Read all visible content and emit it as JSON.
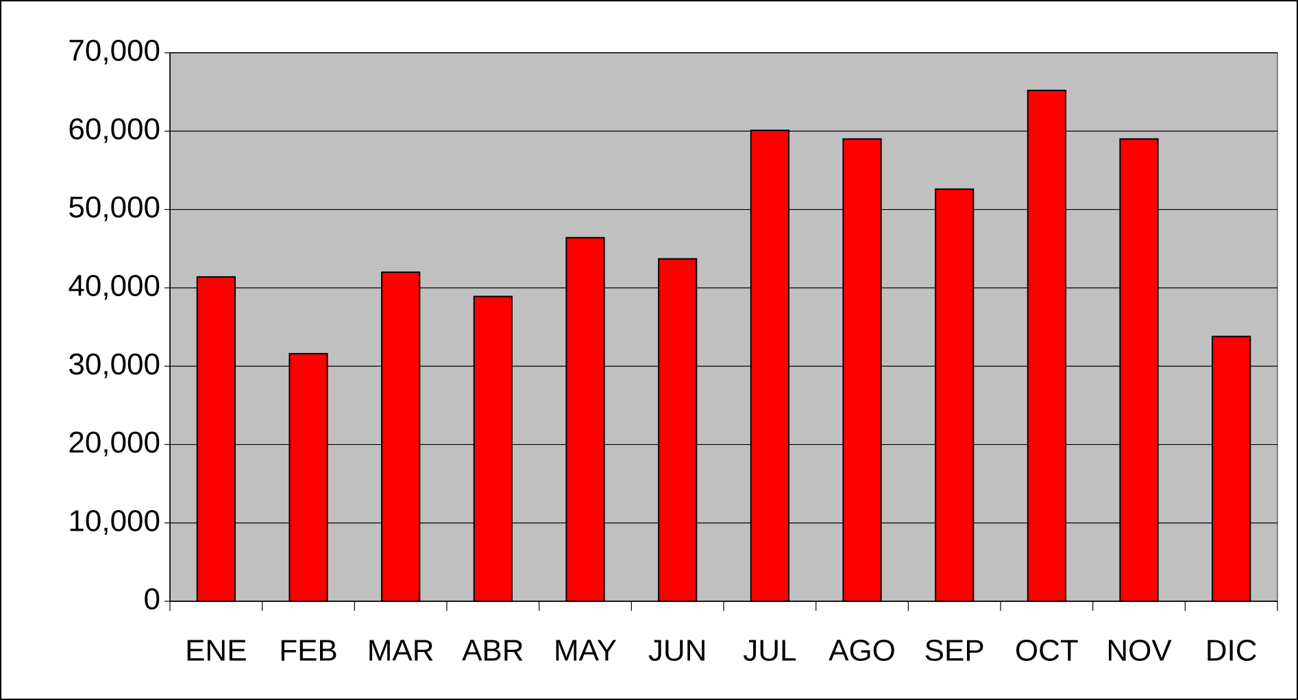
{
  "chart_data": {
    "type": "bar",
    "categories": [
      "ENE",
      "FEB",
      "MAR",
      "ABR",
      "MAY",
      "JUN",
      "JUL",
      "AGO",
      "SEP",
      "OCT",
      "NOV",
      "DIC"
    ],
    "values": [
      41400,
      31600,
      42000,
      38900,
      46400,
      43700,
      60100,
      59000,
      52600,
      65200,
      59000,
      33800
    ],
    "color": "#ff0000",
    "ylim": [
      0,
      70000
    ],
    "yticks": [
      0,
      {
        "value": 10000,
        "label": "10,000"
      },
      {
        "value": 20000,
        "label": "20,000"
      },
      {
        "value": 30000,
        "label": "30,000"
      },
      {
        "value": 40000,
        "label": "40,000"
      },
      {
        "value": 50000,
        "label": "50,000"
      },
      {
        "value": 60000,
        "label": "60,000"
      },
      {
        "value": 70000,
        "label": "70,000"
      }
    ],
    "grid": true
  }
}
